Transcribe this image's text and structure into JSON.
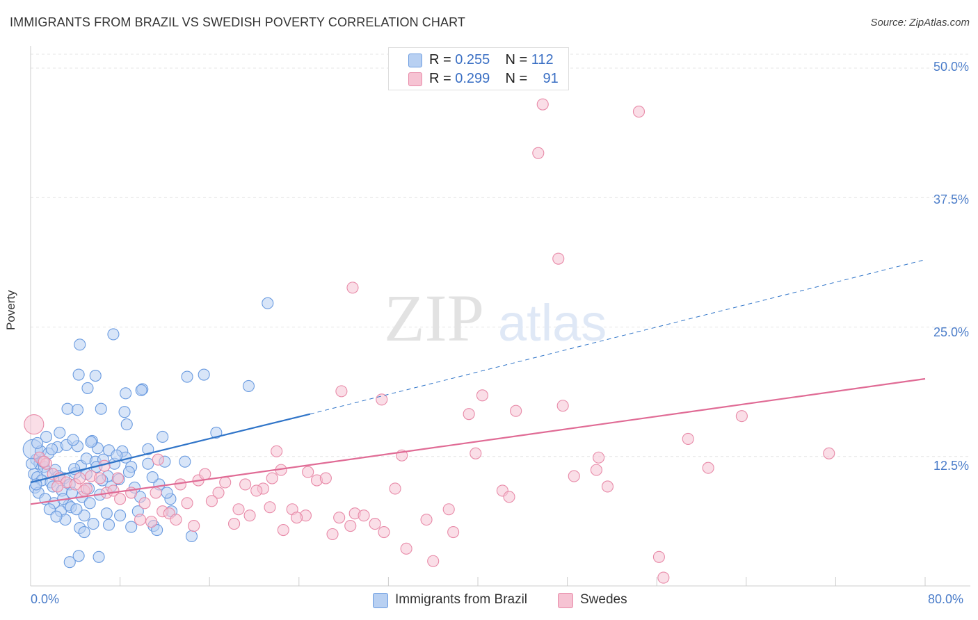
{
  "title": "IMMIGRANTS FROM BRAZIL VS SWEDISH POVERTY CORRELATION CHART",
  "source": "Source: ZipAtlas.com",
  "watermark": {
    "zip": "ZIP",
    "atlas": "atlas"
  },
  "colors": {
    "blue": "#6a9be0",
    "blue_fill": "#b8d0f2",
    "blue_line": "#2f74c8",
    "pink": "#e88aa8",
    "pink_fill": "#f6c3d3",
    "pink_line": "#e06b95",
    "axis_text": "#4a7cc9"
  },
  "legend": {
    "rows": [
      {
        "r_label": "R = ",
        "r_value": "0.255",
        "n_label": "N = ",
        "n_value": "112"
      },
      {
        "r_label": "R = ",
        "r_value": "0.299",
        "n_label": "N = ",
        "n_value": "91"
      }
    ]
  },
  "bottom_legend": {
    "brazil": "Immigrants from Brazil",
    "swedes": "Swedes"
  },
  "chart_data": {
    "type": "scatter",
    "title": "IMMIGRANTS FROM BRAZIL VS SWEDISH POVERTY CORRELATION CHART",
    "xlabel": "",
    "ylabel": "Poverty",
    "xlim": [
      0,
      80
    ],
    "ylim": [
      0,
      52
    ],
    "x_tick_labels": [
      "0.0%",
      "80.0%"
    ],
    "y_tick_labels": [
      "12.5%",
      "25.0%",
      "37.5%",
      "50.0%"
    ],
    "y_ticks": [
      12.5,
      25.0,
      37.5,
      50.0
    ],
    "grid": true,
    "series": [
      {
        "name": "Immigrants from Brazil",
        "R": 0.255,
        "N": 112,
        "trend": {
          "x0": 0,
          "y0": 10.0,
          "x_solid_end": 25,
          "y_solid_end": 16.6,
          "x1": 80,
          "y1": 31.5
        },
        "points": [
          [
            0.5,
            12.2
          ],
          [
            0.8,
            11.8
          ],
          [
            1.2,
            11.5
          ],
          [
            1.5,
            11.0
          ],
          [
            0.3,
            10.8
          ],
          [
            0.6,
            10.5
          ],
          [
            1.0,
            10.2
          ],
          [
            1.8,
            10.0
          ],
          [
            2.2,
            11.2
          ],
          [
            2.5,
            10.6
          ],
          [
            0.4,
            9.5
          ],
          [
            0.7,
            9.0
          ],
          [
            1.3,
            8.4
          ],
          [
            2.0,
            9.6
          ],
          [
            2.8,
            9.2
          ],
          [
            3.0,
            10.4
          ],
          [
            3.5,
            9.8
          ],
          [
            4.0,
            10.9
          ],
          [
            4.5,
            11.6
          ],
          [
            5.0,
            12.3
          ],
          [
            0.2,
            13.2
          ],
          [
            0.9,
            13.0
          ],
          [
            1.6,
            12.8
          ],
          [
            2.4,
            13.4
          ],
          [
            3.2,
            13.6
          ],
          [
            4.2,
            13.5
          ],
          [
            5.5,
            14.0
          ],
          [
            6.0,
            13.3
          ],
          [
            7.0,
            13.1
          ],
          [
            8.2,
            13.0
          ],
          [
            1.4,
            14.4
          ],
          [
            2.6,
            14.8
          ],
          [
            3.8,
            14.1
          ],
          [
            5.8,
            12.0
          ],
          [
            6.5,
            12.2
          ],
          [
            7.5,
            11.8
          ],
          [
            8.5,
            12.4
          ],
          [
            9.0,
            11.5
          ],
          [
            10.5,
            11.8
          ],
          [
            12.0,
            12.0
          ],
          [
            3.4,
            7.8
          ],
          [
            4.6,
            8.6
          ],
          [
            5.2,
            9.4
          ],
          [
            6.2,
            8.8
          ],
          [
            7.2,
            9.6
          ],
          [
            9.8,
            8.6
          ],
          [
            11.5,
            9.8
          ],
          [
            12.5,
            8.4
          ],
          [
            2.7,
            7.2
          ],
          [
            3.6,
            7.6
          ],
          [
            4.8,
            6.8
          ],
          [
            5.6,
            6.0
          ],
          [
            6.8,
            7.0
          ],
          [
            8.0,
            6.8
          ],
          [
            9.6,
            7.2
          ],
          [
            11.0,
            5.8
          ],
          [
            12.6,
            7.2
          ],
          [
            14.4,
            4.8
          ],
          [
            4.4,
            5.6
          ],
          [
            4.8,
            5.2
          ],
          [
            7.0,
            5.9
          ],
          [
            9.0,
            5.7
          ],
          [
            11.3,
            5.4
          ],
          [
            3.5,
            2.3
          ],
          [
            4.3,
            2.9
          ],
          [
            6.1,
            2.8
          ],
          [
            3.3,
            17.1
          ],
          [
            4.2,
            17.0
          ],
          [
            6.3,
            17.1
          ],
          [
            8.4,
            16.8
          ],
          [
            8.6,
            15.6
          ],
          [
            4.3,
            20.4
          ],
          [
            5.1,
            19.1
          ],
          [
            5.8,
            20.3
          ],
          [
            8.5,
            18.6
          ],
          [
            10.0,
            19.0
          ],
          [
            9.9,
            18.9
          ],
          [
            14.0,
            20.2
          ],
          [
            15.5,
            20.4
          ],
          [
            19.5,
            19.3
          ],
          [
            4.4,
            23.3
          ],
          [
            7.4,
            24.3
          ],
          [
            21.2,
            27.3
          ],
          [
            11.8,
            14.4
          ],
          [
            16.6,
            14.8
          ],
          [
            13.8,
            12.0
          ],
          [
            10.5,
            13.2
          ],
          [
            5.4,
            13.9
          ],
          [
            5.9,
            11.5
          ],
          [
            7.9,
            10.3
          ],
          [
            9.3,
            9.5
          ],
          [
            6.9,
            10.6
          ],
          [
            0.5,
            9.8
          ],
          [
            1.1,
            12.0
          ],
          [
            2.1,
            8.0
          ],
          [
            2.9,
            8.4
          ],
          [
            3.7,
            9.0
          ],
          [
            5.0,
            10.8
          ],
          [
            6.4,
            10.2
          ],
          [
            8.8,
            11.0
          ],
          [
            1.7,
            7.4
          ],
          [
            3.1,
            6.4
          ],
          [
            0.1,
            11.8
          ],
          [
            0.6,
            13.8
          ],
          [
            1.9,
            13.2
          ],
          [
            3.9,
            11.3
          ],
          [
            7.7,
            12.6
          ],
          [
            10.9,
            10.5
          ],
          [
            12.2,
            9.0
          ],
          [
            5.3,
            8.0
          ],
          [
            2.3,
            6.7
          ],
          [
            4.1,
            7.4
          ]
        ]
      },
      {
        "name": "Swedes",
        "R": 0.299,
        "N": 91,
        "trend": {
          "x0": 0,
          "y0": 7.9,
          "x1": 80,
          "y1": 20.0
        },
        "points": [
          [
            0.3,
            15.6
          ],
          [
            0.8,
            12.4
          ],
          [
            1.4,
            11.8
          ],
          [
            2.0,
            10.8
          ],
          [
            2.6,
            10.4
          ],
          [
            3.2,
            10.0
          ],
          [
            4.0,
            9.8
          ],
          [
            4.8,
            9.2
          ],
          [
            5.4,
            10.6
          ],
          [
            6.2,
            10.4
          ],
          [
            6.8,
            9.0
          ],
          [
            7.4,
            9.2
          ],
          [
            8.0,
            8.4
          ],
          [
            9.0,
            9.0
          ],
          [
            10.2,
            8.0
          ],
          [
            11.4,
            12.2
          ],
          [
            11.8,
            7.2
          ],
          [
            12.4,
            7.0
          ],
          [
            13.4,
            9.8
          ],
          [
            14.0,
            8.0
          ],
          [
            15.0,
            10.2
          ],
          [
            15.6,
            10.8
          ],
          [
            16.8,
            9.0
          ],
          [
            17.4,
            10.0
          ],
          [
            18.6,
            7.4
          ],
          [
            19.2,
            9.8
          ],
          [
            19.6,
            6.8
          ],
          [
            20.8,
            9.4
          ],
          [
            21.6,
            10.4
          ],
          [
            22.0,
            13.0
          ],
          [
            22.4,
            11.2
          ],
          [
            22.6,
            5.4
          ],
          [
            23.4,
            7.4
          ],
          [
            24.6,
            6.8
          ],
          [
            24.8,
            11.0
          ],
          [
            25.6,
            10.2
          ],
          [
            26.4,
            10.4
          ],
          [
            27.0,
            5.0
          ],
          [
            27.6,
            6.6
          ],
          [
            28.6,
            5.8
          ],
          [
            29.0,
            7.0
          ],
          [
            29.8,
            6.8
          ],
          [
            30.8,
            6.0
          ],
          [
            31.6,
            5.2
          ],
          [
            32.6,
            9.4
          ],
          [
            33.2,
            12.6
          ],
          [
            33.6,
            3.6
          ],
          [
            35.4,
            6.4
          ],
          [
            36.0,
            2.4
          ],
          [
            37.4,
            7.4
          ],
          [
            37.8,
            5.2
          ],
          [
            39.2,
            16.6
          ],
          [
            39.8,
            12.8
          ],
          [
            40.4,
            18.4
          ],
          [
            42.2,
            9.2
          ],
          [
            42.8,
            8.6
          ],
          [
            43.4,
            16.9
          ],
          [
            45.8,
            46.5
          ],
          [
            45.4,
            41.8
          ],
          [
            47.2,
            31.6
          ],
          [
            47.6,
            17.4
          ],
          [
            48.6,
            10.6
          ],
          [
            50.6,
            11.2
          ],
          [
            50.8,
            12.4
          ],
          [
            51.6,
            9.6
          ],
          [
            54.4,
            45.8
          ],
          [
            56.2,
            2.8
          ],
          [
            56.6,
            0.8
          ],
          [
            58.8,
            14.2
          ],
          [
            60.6,
            11.4
          ],
          [
            63.6,
            16.4
          ],
          [
            71.4,
            12.8
          ],
          [
            28.8,
            28.8
          ],
          [
            27.8,
            18.8
          ],
          [
            31.4,
            18.0
          ],
          [
            4.4,
            10.4
          ],
          [
            5.0,
            9.4
          ],
          [
            6.6,
            11.6
          ],
          [
            7.8,
            10.4
          ],
          [
            9.8,
            6.4
          ],
          [
            10.8,
            6.2
          ],
          [
            11.2,
            9.0
          ],
          [
            13.0,
            6.4
          ],
          [
            14.6,
            5.8
          ],
          [
            16.2,
            8.2
          ],
          [
            18.2,
            6.0
          ],
          [
            20.2,
            9.2
          ],
          [
            21.4,
            7.6
          ],
          [
            23.8,
            6.6
          ],
          [
            1.2,
            12.0
          ],
          [
            2.4,
            9.6
          ]
        ]
      }
    ]
  }
}
